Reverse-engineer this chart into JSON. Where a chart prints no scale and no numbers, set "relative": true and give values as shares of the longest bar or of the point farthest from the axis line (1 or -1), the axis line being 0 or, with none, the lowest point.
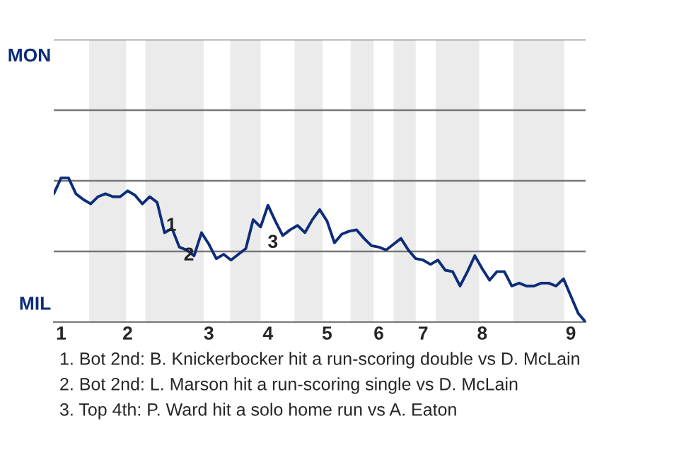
{
  "chart_data": {
    "type": "line",
    "relative": true,
    "categories": [
      null,
      "1",
      null,
      null,
      null,
      null,
      null,
      null,
      null,
      null,
      "2",
      null,
      null,
      null,
      null,
      null,
      null,
      null,
      null,
      null,
      null,
      "3",
      null,
      null,
      null,
      null,
      null,
      null,
      null,
      "4",
      null,
      null,
      null,
      null,
      null,
      null,
      null,
      "5",
      null,
      null,
      null,
      null,
      null,
      null,
      "6",
      null,
      null,
      null,
      null,
      null,
      "7",
      null,
      null,
      null,
      null,
      null,
      null,
      null,
      "8",
      null,
      null,
      null,
      null,
      null,
      null,
      null,
      null,
      null,
      null,
      null,
      "9",
      null,
      null
    ],
    "series": [
      {
        "color": "#0d2d7a",
        "values": [
          0.89,
          1,
          1,
          0.89,
          0.85,
          0.82,
          0.87,
          0.89,
          0.87,
          0.87,
          0.91,
          0.88,
          0.82,
          0.87,
          0.83,
          0.62,
          0.65,
          0.52,
          0.5,
          0.46,
          0.62,
          0.54,
          0.44,
          0.47,
          0.43,
          0.47,
          0.51,
          0.71,
          0.66,
          0.81,
          0.7,
          0.6,
          0.64,
          0.67,
          0.62,
          0.71,
          0.78,
          0.7,
          0.55,
          0.61,
          0.63,
          0.64,
          0.58,
          0.53,
          0.52,
          0.5,
          0.54,
          0.58,
          0.5,
          0.44,
          0.43,
          0.4,
          0.43,
          0.36,
          0.35,
          0.25,
          0.35,
          0.46,
          0.37,
          0.29,
          0.35,
          0.35,
          0.25,
          0.27,
          0.25,
          0.25,
          0.27,
          0.27,
          0.25,
          0.3,
          0.18,
          0.06,
          0
        ]
      }
    ],
    "ref_lines": [
      {
        "axis": "y",
        "value": 0.49,
        "color": "#777777"
      }
    ],
    "marker": "none",
    "line_style": "solid",
    "annotations": [
      "MON",
      "MIL",
      "1",
      "2",
      "3",
      "1. Bot 2nd: B. Knickerbocker hit a run-scoring double vs D. McLain",
      "2. Bot 2nd: L. Marson hit a run-scoring single vs D. McLain",
      "3. Top 4th: P. Ward hit a solo home run vs A. Eaton"
    ]
  }
}
